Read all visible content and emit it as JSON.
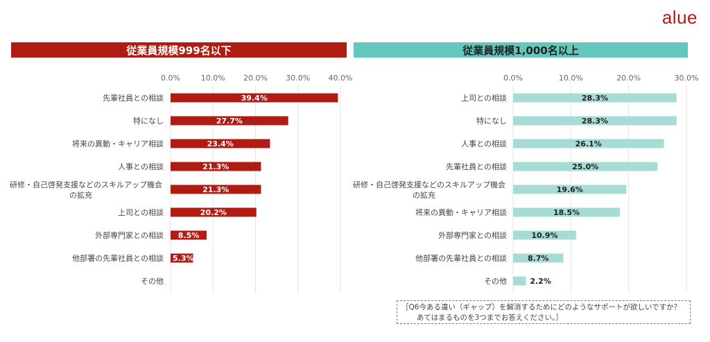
{
  "brand": "alue",
  "chart_data": [
    {
      "type": "bar",
      "orientation": "horizontal",
      "title": "従業員規模999名以下",
      "xlim": [
        0,
        40
      ],
      "ticks": [
        "0.0%",
        "10.0%",
        "20.0%",
        "30.0%",
        "40.0%"
      ],
      "color": "#b01c14",
      "categories": [
        [
          "先輩社員との相談"
        ],
        [
          "特になし"
        ],
        [
          "将来の異動・キャリア相談"
        ],
        [
          "人事との相談"
        ],
        [
          "研修・自己啓発支援などのスキルアップ機会",
          "の拡充"
        ],
        [
          "上司との相談"
        ],
        [
          "外部専門家との相談"
        ],
        [
          "他部署の先輩社員との相談"
        ],
        [
          "その他"
        ]
      ],
      "values": [
        39.4,
        27.7,
        23.4,
        21.3,
        21.3,
        20.2,
        8.5,
        5.3,
        0
      ],
      "labels": [
        "39.4%",
        "27.7%",
        "23.4%",
        "21.3%",
        "21.3%",
        "20.2%",
        "8.5%",
        "5.3%",
        ""
      ]
    },
    {
      "type": "bar",
      "orientation": "horizontal",
      "title": "従業員規模1,000名以上",
      "xlim": [
        0,
        30
      ],
      "ticks": [
        "0.0%",
        "10.0%",
        "20.0%",
        "30.0%"
      ],
      "color": "#a6dcd5",
      "categories": [
        [
          "上司との相談"
        ],
        [
          "特になし"
        ],
        [
          "人事との相談"
        ],
        [
          "先輩社員との相談"
        ],
        [
          "研修・自己啓発支援などのスキルアップ機会",
          "の拡充"
        ],
        [
          "将来の異動・キャリア相談"
        ],
        [
          "外部専門家との相談"
        ],
        [
          "他部署の先輩社員との相談"
        ],
        [
          "その他"
        ]
      ],
      "values": [
        28.3,
        28.3,
        26.1,
        25.0,
        19.6,
        18.5,
        10.9,
        8.7,
        2.2
      ],
      "labels": [
        "28.3%",
        "28.3%",
        "26.1%",
        "25.0%",
        "19.6%",
        "18.5%",
        "10.9%",
        "8.7%",
        "2.2%"
      ]
    }
  ],
  "note": {
    "line1": "［Q6今ある違い（ギャップ）を解消するためにどのようなサポートが欲しいですか？",
    "line2": "あてはまるものを3つまでお答えください。］"
  }
}
